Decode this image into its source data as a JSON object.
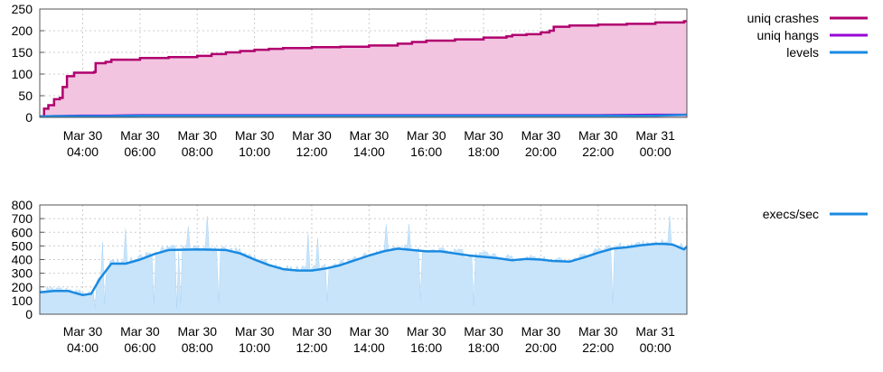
{
  "chart_data": [
    {
      "type": "line",
      "title": "",
      "xlabel": "",
      "ylabel": "",
      "ylim": [
        0,
        250
      ],
      "y_ticks": [
        0,
        50,
        100,
        150,
        200,
        250
      ],
      "x_ticks": [
        {
          "line1": "Mar 30",
          "line2": "04:00",
          "t": 4
        },
        {
          "line1": "Mar 30",
          "line2": "06:00",
          "t": 6
        },
        {
          "line1": "Mar 30",
          "line2": "08:00",
          "t": 8
        },
        {
          "line1": "Mar 30",
          "line2": "10:00",
          "t": 10
        },
        {
          "line1": "Mar 30",
          "line2": "12:00",
          "t": 12
        },
        {
          "line1": "Mar 30",
          "line2": "14:00",
          "t": 14
        },
        {
          "line1": "Mar 30",
          "line2": "16:00",
          "t": 16
        },
        {
          "line1": "Mar 30",
          "line2": "18:00",
          "t": 18
        },
        {
          "line1": "Mar 30",
          "line2": "20:00",
          "t": 20
        },
        {
          "line1": "Mar 30",
          "line2": "22:00",
          "t": 22
        },
        {
          "line1": "Mar 31",
          "line2": "00:00",
          "t": 24
        }
      ],
      "xlim": [
        2.5,
        25.1
      ],
      "grid": true,
      "legend_position": "right",
      "series": [
        {
          "name": "uniq crashes",
          "color": "#b0006e",
          "fill": "#f2c4e0",
          "x": [
            2.5,
            2.65,
            2.8,
            3.0,
            3.2,
            3.3,
            3.45,
            3.7,
            4.0,
            4.4,
            4.45,
            4.8,
            5.0,
            6.0,
            7.0,
            8.0,
            8.5,
            9.0,
            9.5,
            10.0,
            10.5,
            11.0,
            12.0,
            13.0,
            14.0,
            15.0,
            15.5,
            16.0,
            17.0,
            18.0,
            18.8,
            19.0,
            19.5,
            20.0,
            20.3,
            20.45,
            21.0,
            22.0,
            23.0,
            24.0,
            25.0
          ],
          "values": [
            2,
            20,
            28,
            42,
            45,
            70,
            95,
            103,
            103,
            105,
            125,
            128,
            133,
            137,
            139,
            142,
            146,
            150,
            153,
            156,
            158,
            160,
            162,
            163,
            166,
            170,
            174,
            177,
            180,
            184,
            187,
            190,
            192,
            196,
            200,
            209,
            212,
            214,
            216,
            219,
            222
          ]
        },
        {
          "name": "uniq hangs",
          "color": "#9500d4",
          "x": [
            2.5,
            3.0,
            4.0,
            5.0,
            6.0,
            10.0,
            14.0,
            18.0,
            22.0,
            24.0,
            25.1
          ],
          "values": [
            2,
            3,
            4,
            4,
            5,
            5,
            5,
            5,
            5,
            6,
            6
          ]
        },
        {
          "name": "levels",
          "color": "#1a8ae0",
          "x": [
            2.5,
            3.0,
            4.0,
            5.0,
            6.0,
            10.0,
            14.0,
            18.0,
            22.0,
            24.0,
            24.5,
            25.1
          ],
          "values": [
            2,
            3,
            3,
            3,
            4,
            4,
            4,
            4,
            4,
            4,
            5,
            6
          ]
        }
      ]
    },
    {
      "type": "line",
      "title": "",
      "xlabel": "",
      "ylabel": "",
      "ylim": [
        0,
        800
      ],
      "y_ticks": [
        0,
        100,
        200,
        300,
        400,
        500,
        600,
        700,
        800
      ],
      "x_ticks": [
        {
          "line1": "Mar 30",
          "line2": "04:00",
          "t": 4
        },
        {
          "line1": "Mar 30",
          "line2": "06:00",
          "t": 6
        },
        {
          "line1": "Mar 30",
          "line2": "08:00",
          "t": 8
        },
        {
          "line1": "Mar 30",
          "line2": "10:00",
          "t": 10
        },
        {
          "line1": "Mar 30",
          "line2": "12:00",
          "t": 12
        },
        {
          "line1": "Mar 30",
          "line2": "14:00",
          "t": 14
        },
        {
          "line1": "Mar 30",
          "line2": "16:00",
          "t": 16
        },
        {
          "line1": "Mar 30",
          "line2": "18:00",
          "t": 18
        },
        {
          "line1": "Mar 30",
          "line2": "20:00",
          "t": 20
        },
        {
          "line1": "Mar 30",
          "line2": "22:00",
          "t": 22
        },
        {
          "line1": "Mar 31",
          "line2": "00:00",
          "t": 24
        }
      ],
      "xlim": [
        2.5,
        25.1
      ],
      "grid": true,
      "legend_position": "right",
      "series": [
        {
          "name": "execs/sec",
          "color": "#1a8ae0",
          "fill": "#c8e4fa",
          "x": [
            2.5,
            3.0,
            3.5,
            4.0,
            4.3,
            4.6,
            5.0,
            5.5,
            6.0,
            6.5,
            7.0,
            8.0,
            9.0,
            9.5,
            10.0,
            10.5,
            11.0,
            11.5,
            12.0,
            12.5,
            13.0,
            13.5,
            14.0,
            14.5,
            15.0,
            15.5,
            16.0,
            16.5,
            17.0,
            17.5,
            18.0,
            18.5,
            19.0,
            19.5,
            20.0,
            20.4,
            21.0,
            21.5,
            22.0,
            22.5,
            23.0,
            23.5,
            24.0,
            24.3,
            24.6,
            25.0,
            25.1
          ],
          "values": [
            160,
            170,
            170,
            140,
            150,
            260,
            370,
            370,
            400,
            440,
            470,
            475,
            470,
            445,
            400,
            360,
            330,
            320,
            320,
            335,
            360,
            395,
            430,
            460,
            480,
            470,
            460,
            460,
            445,
            430,
            420,
            410,
            395,
            405,
            400,
            390,
            385,
            415,
            450,
            480,
            490,
            505,
            515,
            515,
            510,
            475,
            495
          ]
        }
      ]
    }
  ]
}
